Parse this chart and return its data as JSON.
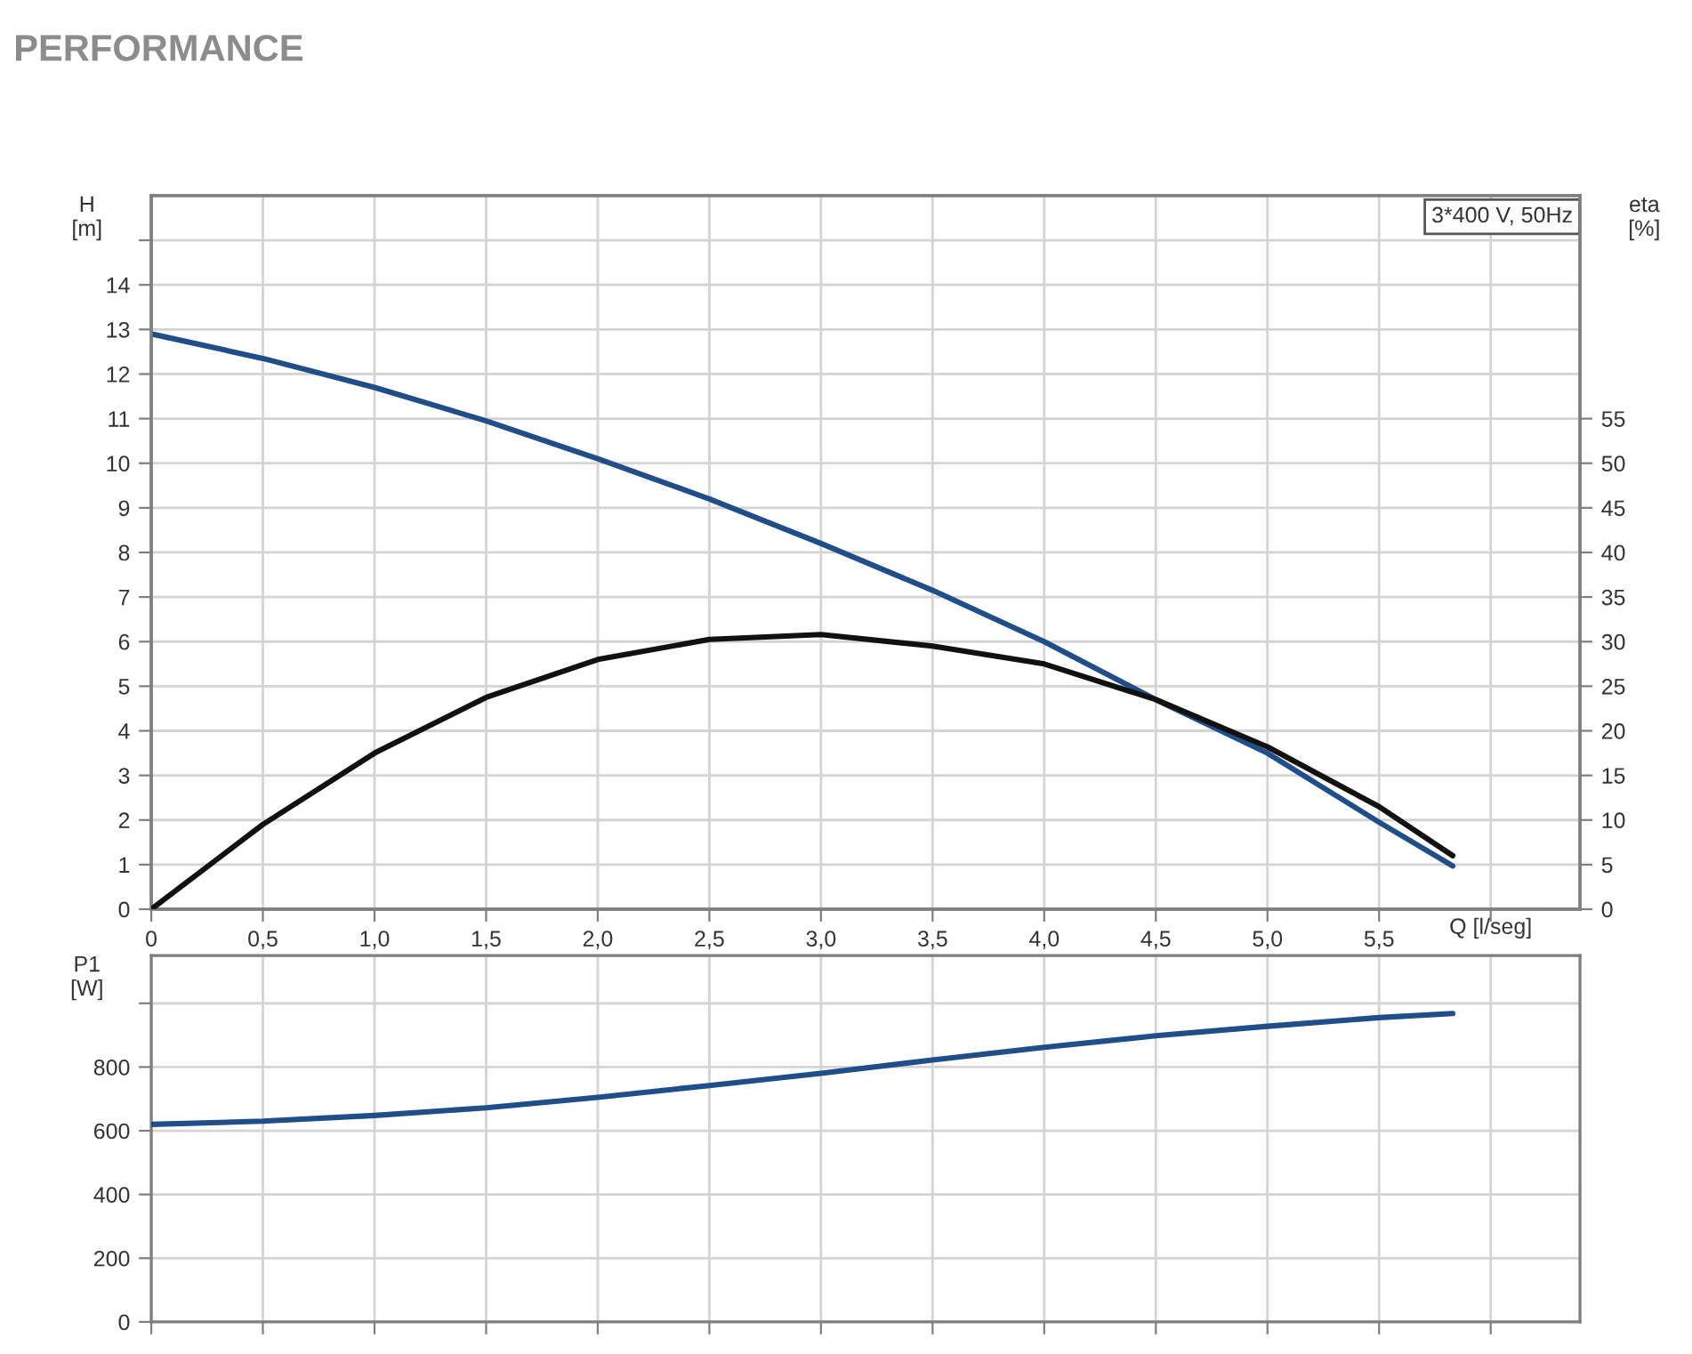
{
  "chart_data": [
    {
      "type": "line",
      "title": "PERFORMANCE",
      "ylabel": "H\n[m]",
      "y2label": "eta\n[%]",
      "xlabel": "Q [l/seg]",
      "annotations": [
        "3*400 V, 50Hz"
      ],
      "x": [
        0,
        0.5,
        1.0,
        1.5,
        2.0,
        2.5,
        3.0,
        3.5,
        4.0,
        4.5,
        5.0,
        5.5,
        5.83
      ],
      "series": [
        {
          "color": "#1f4e89",
          "values": [
            12.9,
            12.35,
            11.7,
            10.95,
            10.1,
            9.2,
            8.2,
            7.15,
            6.0,
            4.7,
            3.5,
            1.95,
            0.97
          ]
        },
        {
          "color": "#111111",
          "axis": "y2",
          "values": [
            0,
            9.5,
            17.5,
            23.75,
            28,
            30.25,
            30.8,
            29.5,
            27.5,
            23.5,
            18.2,
            11.5,
            6
          ]
        }
      ],
      "xlim": [
        0,
        6.4
      ],
      "xticks": [
        0,
        {
          "value": 0.5,
          "label": "0,5"
        },
        {
          "value": 1.0,
          "label": "1,0"
        },
        {
          "value": 1.5,
          "label": "1,5"
        },
        {
          "value": 2.0,
          "label": "2,0"
        },
        {
          "value": 2.5,
          "label": "2,5"
        },
        {
          "value": 3.0,
          "label": "3,0"
        },
        {
          "value": 3.5,
          "label": "3,5"
        },
        {
          "value": 4.0,
          "label": "4,0"
        },
        {
          "value": 4.5,
          "label": "4,5"
        },
        {
          "value": 5.0,
          "label": "5,0"
        },
        {
          "value": 5.5,
          "label": "5,5"
        },
        {
          "value": 6.0,
          "label": null
        }
      ],
      "ylim": [
        0,
        16
      ],
      "yticks": [
        0,
        1,
        2,
        3,
        4,
        5,
        6,
        7,
        8,
        9,
        10,
        11,
        12,
        13,
        14,
        {
          "value": 15,
          "label": null
        }
      ],
      "y2lim": [
        0,
        80
      ],
      "y2ticks": [
        0,
        5,
        10,
        15,
        20,
        25,
        30,
        35,
        40,
        45,
        50,
        55
      ],
      "grid": true,
      "legend": false,
      "line_style": "solid",
      "marker": "none"
    },
    {
      "type": "line",
      "ylabel": "P1\n[W]",
      "x": [
        0,
        0.5,
        1.0,
        1.5,
        2.0,
        2.5,
        3.0,
        3.5,
        4.0,
        4.5,
        5.0,
        5.5,
        5.83
      ],
      "series": [
        {
          "color": "#1f4e89",
          "values": [
            620,
            630,
            648,
            672,
            705,
            742,
            780,
            822,
            862,
            898,
            928,
            955,
            968
          ]
        }
      ],
      "xlim": [
        0,
        6.4
      ],
      "xticks": [
        {
          "value": 0,
          "label": null
        },
        {
          "value": 0.5,
          "label": null
        },
        {
          "value": 1.0,
          "label": null
        },
        {
          "value": 1.5,
          "label": null
        },
        {
          "value": 2.0,
          "label": null
        },
        {
          "value": 2.5,
          "label": null
        },
        {
          "value": 3.0,
          "label": null
        },
        {
          "value": 3.5,
          "label": null
        },
        {
          "value": 4.0,
          "label": null
        },
        {
          "value": 4.5,
          "label": null
        },
        {
          "value": 5.0,
          "label": null
        },
        {
          "value": 5.5,
          "label": null
        },
        {
          "value": 6.0,
          "label": null
        }
      ],
      "ylim": [
        0,
        1150
      ],
      "yticks": [
        0,
        200,
        400,
        600,
        800,
        {
          "value": 1000,
          "label": null
        }
      ],
      "tick_labels": "y",
      "grid": true,
      "legend": false,
      "line_style": "solid",
      "marker": "none"
    }
  ]
}
